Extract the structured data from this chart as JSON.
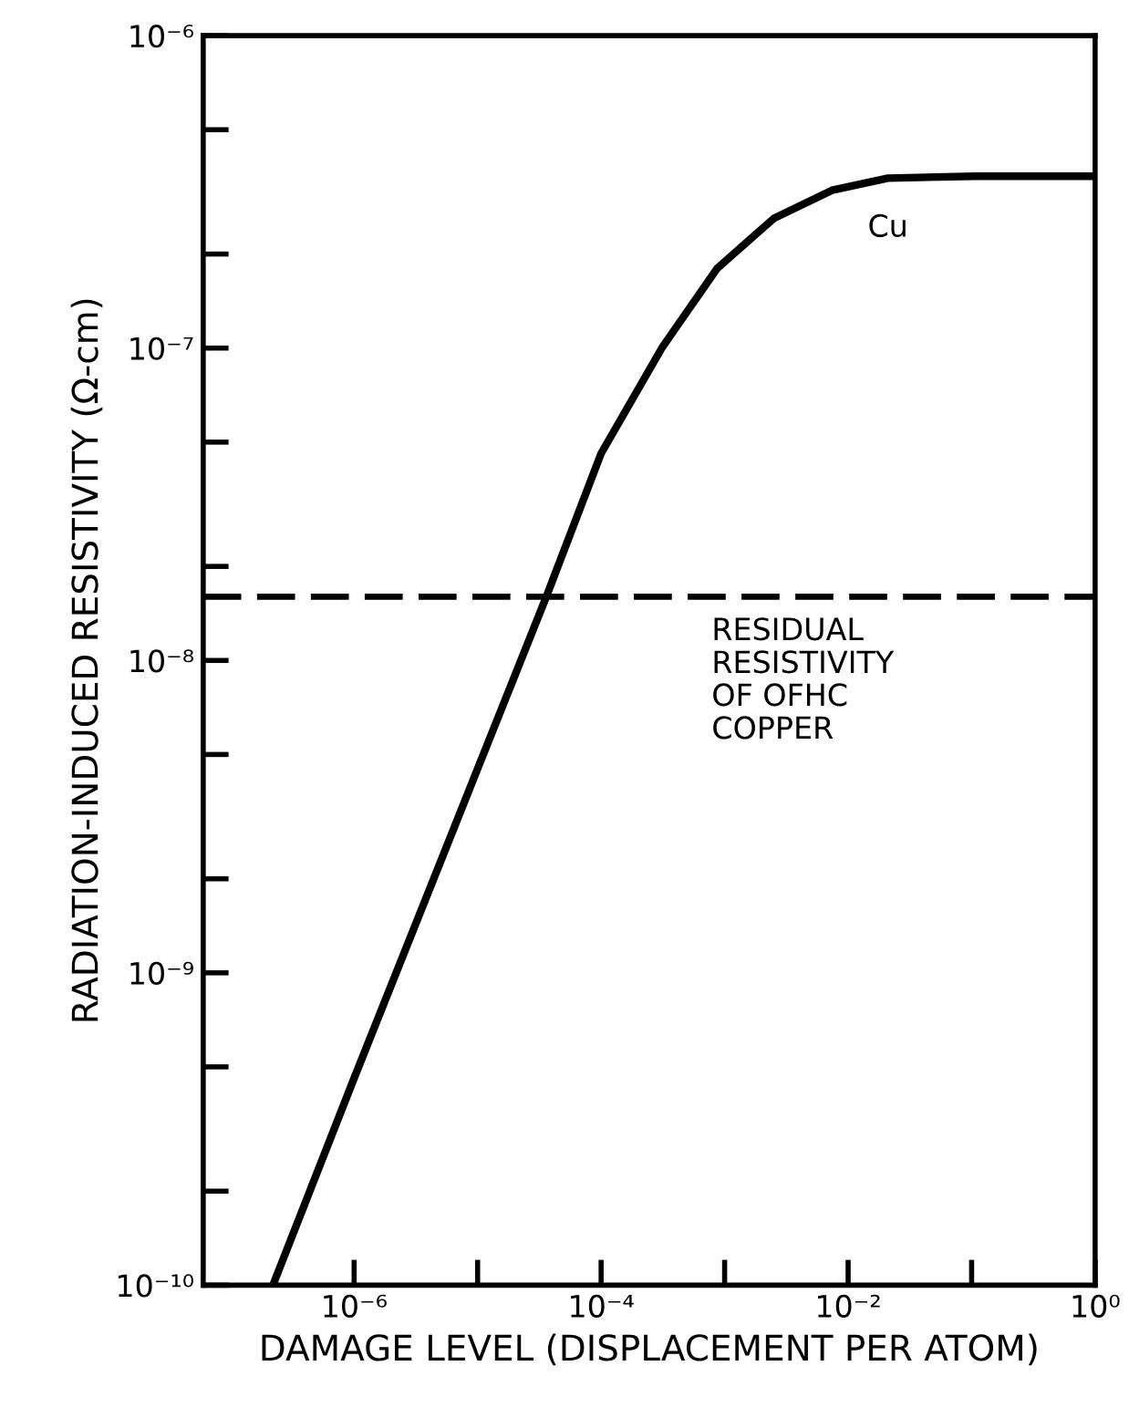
{
  "chart_data": {
    "type": "line",
    "xlabel": "DAMAGE LEVEL (DISPLACEMENT PER ATOM)",
    "ylabel": "RADIATION-INDUCED RESISTIVITY (Ω-cm)",
    "log": "xy",
    "grid": false,
    "marker": "none",
    "line_style": "solid",
    "xlim": [
      6e-08,
      1
    ],
    "ylim": [
      1e-10,
      1e-06
    ],
    "xticks": [
      {
        "value": 1e-06,
        "label": "10⁻⁶"
      },
      {
        "value": 1e-05,
        "label": null
      },
      {
        "value": 0.0001,
        "label": "10⁻⁴"
      },
      {
        "value": 0.001,
        "label": null
      },
      {
        "value": 0.01,
        "label": "10⁻²"
      },
      {
        "value": 0.1,
        "label": null
      },
      {
        "value": 1,
        "label": "10⁰"
      }
    ],
    "yticks": [
      {
        "value": 1e-10,
        "label": "10⁻¹⁰"
      },
      {
        "value": 2e-10,
        "label": null
      },
      {
        "value": 5e-10,
        "label": null
      },
      {
        "value": 1e-09,
        "label": "10⁻⁹"
      },
      {
        "value": 2e-09,
        "label": null
      },
      {
        "value": 5e-09,
        "label": null
      },
      {
        "value": 1e-08,
        "label": "10⁻⁸"
      },
      {
        "value": 2e-08,
        "label": null
      },
      {
        "value": 5e-08,
        "label": null
      },
      {
        "value": 1e-07,
        "label": "10⁻⁷"
      },
      {
        "value": 2e-07,
        "label": null
      },
      {
        "value": 5e-07,
        "label": null
      },
      {
        "value": 1e-06,
        "label": "10⁻⁶"
      }
    ],
    "series": [
      {
        "name": "Cu",
        "color": "#000000",
        "x": [
          2.2e-07,
          1e-06,
          1e-05,
          3.6e-05,
          0.0001,
          0.00031,
          0.00087,
          0.0025,
          0.0074,
          0.021,
          0.107,
          1
        ],
        "values": [
          1e-10,
          4.6e-10,
          4.5e-09,
          1.6e-08,
          4.6e-08,
          1e-07,
          1.8e-07,
          2.6e-07,
          3.2e-07,
          3.5e-07,
          3.55e-07,
          3.55e-07
        ]
      }
    ],
    "ref_lines": [
      {
        "axis": "y",
        "value": 1.6e-08,
        "label": "RESIDUAL\nRESISTIVITY\nOF OFHC\nCOPPER",
        "color": "#000000",
        "line_style": "dashed"
      }
    ]
  }
}
